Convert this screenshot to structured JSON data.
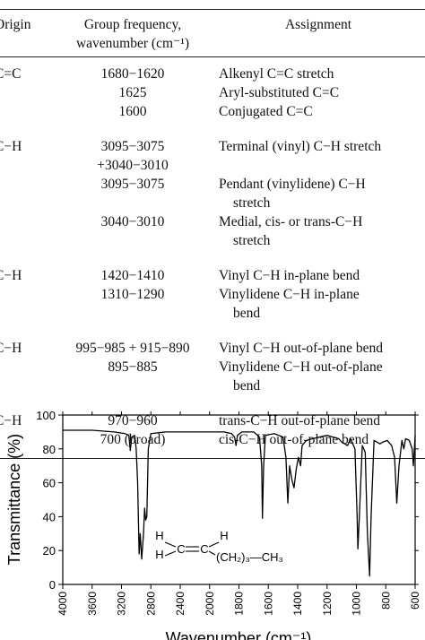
{
  "table": {
    "header": [
      "Origin",
      "Group frequency, wavenumber (cm⁻¹)",
      "Assignment"
    ],
    "groups": [
      {
        "origin": "C=C",
        "entries": [
          {
            "frequency": [
              "1680−1620"
            ],
            "assignment": [
              "Alkenyl C=C stretch"
            ]
          },
          {
            "frequency": [
              "1625"
            ],
            "assignment": [
              "Aryl-substituted C=C"
            ]
          },
          {
            "frequency": [
              "1600"
            ],
            "assignment": [
              "Conjugated C=C"
            ]
          }
        ]
      },
      {
        "origin": "C−H",
        "entries": [
          {
            "frequency": [
              "3095−3075",
              "+3040−3010"
            ],
            "assignment": [
              "Terminal (vinyl) C−H stretch"
            ]
          },
          {
            "frequency": [
              "3095−3075"
            ],
            "assignment": [
              "Pendant (vinylidene) C−H",
              "stretch"
            ]
          },
          {
            "frequency": [
              "3040−3010"
            ],
            "assignment": [
              "Medial, cis- or trans-C−H",
              "stretch"
            ]
          }
        ]
      },
      {
        "origin": "C−H",
        "entries": [
          {
            "frequency": [
              "1420−1410"
            ],
            "assignment": [
              "Vinyl C−H in-plane bend"
            ]
          },
          {
            "frequency": [
              "1310−1290"
            ],
            "assignment": [
              "Vinylidene C−H in-plane",
              "bend"
            ]
          }
        ]
      },
      {
        "origin": "C−H",
        "entries": [
          {
            "frequency": [
              "995−985 + 915−890"
            ],
            "assignment": [
              "Vinyl C−H out-of-plane bend"
            ]
          },
          {
            "frequency": [
              "895−885"
            ],
            "assignment": [
              "Vinylidene C−H out-of-plane",
              "bend"
            ]
          }
        ]
      },
      {
        "origin": "C−H",
        "entries": [
          {
            "frequency": [
              "970−960"
            ],
            "assignment": [
              "trans-C−H out-of-plane bend"
            ]
          },
          {
            "frequency": [
              "700 (broad)"
            ],
            "assignment": [
              "cis-C−H out-of-plane bend"
            ]
          }
        ]
      }
    ]
  },
  "chart_data": {
    "type": "line",
    "xlabel": "Wavenumber (cm⁻¹)",
    "ylabel": "Transmittance (%)",
    "color": "#000000",
    "x": [
      4000,
      3600,
      3300,
      3150,
      3100,
      3080,
      3060,
      3020,
      3000,
      2980,
      2960,
      2945,
      2925,
      2900,
      2885,
      2870,
      2855,
      2835,
      2800,
      2600,
      2400,
      2200,
      2000,
      1900,
      1850,
      1830,
      1820,
      1810,
      1780,
      1700,
      1660,
      1645,
      1640,
      1632,
      1620,
      1560,
      1500,
      1480,
      1467,
      1455,
      1440,
      1425,
      1410,
      1395,
      1380,
      1370,
      1340,
      1300,
      1250,
      1200,
      1120,
      1100,
      1060,
      1040,
      1010,
      995,
      990,
      980,
      960,
      940,
      925,
      910,
      900,
      880,
      860,
      840,
      820,
      790,
      760,
      740,
      725,
      710,
      690,
      677,
      665,
      640,
      620,
      612,
      605,
      600
    ],
    "values": [
      91,
      91,
      90,
      89,
      88,
      79,
      87,
      88,
      80,
      60,
      18,
      30,
      15,
      30,
      45,
      38,
      40,
      80,
      89,
      90,
      90,
      90,
      90,
      90,
      89,
      87,
      82,
      88,
      90,
      90,
      87,
      70,
      39,
      70,
      88,
      89,
      87,
      75,
      48,
      70,
      62,
      57,
      68,
      75,
      70,
      82,
      85,
      86,
      87,
      88,
      86,
      84,
      82,
      86,
      80,
      40,
      21,
      40,
      82,
      78,
      30,
      5,
      40,
      85,
      84,
      83,
      84,
      85,
      82,
      75,
      48,
      70,
      85,
      80,
      86,
      85,
      80,
      70,
      80,
      88
    ],
    "xlim": [
      4000,
      600
    ],
    "xticks": [
      4000,
      3600,
      3200,
      2800,
      2400,
      2000,
      1800,
      1600,
      1400,
      1200,
      1000,
      800,
      600
    ],
    "ylim": [
      0,
      100
    ],
    "yticks": [
      0,
      20,
      40,
      60,
      80,
      100
    ],
    "structure": {
      "h_top_left": "H",
      "h_bottom_left": "H",
      "c_left": "C",
      "c_right": "C",
      "h_top_right": "H",
      "chain": "(CH₂)₃—CH₃"
    }
  }
}
